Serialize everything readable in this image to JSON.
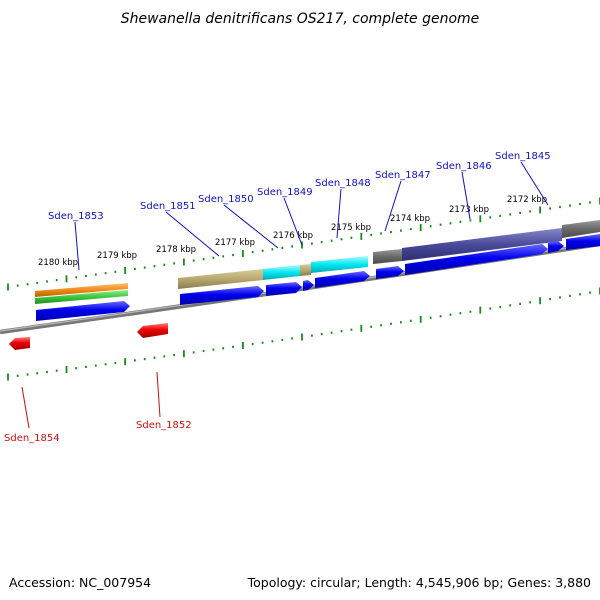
{
  "title": "Shewanella denitrificans OS217, complete genome",
  "footer": {
    "accession": "Accession: NC_007954",
    "topology": "Topology: circular; Length: 4,545,906 bp; Genes: 3,880"
  },
  "kbp_labels": [
    {
      "text": "2180 kbp",
      "pos": 2180
    },
    {
      "text": "2179 kbp",
      "pos": 2179
    },
    {
      "text": "2178 kbp",
      "pos": 2178
    },
    {
      "text": "2177 kbp",
      "pos": 2177
    },
    {
      "text": "2176 kbp",
      "pos": 2176
    },
    {
      "text": "2175 kbp",
      "pos": 2175
    },
    {
      "text": "2174 kbp",
      "pos": 2174
    },
    {
      "text": "2173 kbp",
      "pos": 2173
    },
    {
      "text": "2172 kbp",
      "pos": 2172
    }
  ],
  "genes_forward": [
    {
      "name": "Sden_1853"
    },
    {
      "name": "Sden_1851"
    },
    {
      "name": "Sden_1850"
    },
    {
      "name": "Sden_1849"
    },
    {
      "name": "Sden_1848"
    },
    {
      "name": "Sden_1847"
    },
    {
      "name": "Sden_1846"
    },
    {
      "name": "Sden_1845"
    }
  ],
  "genes_reverse": [
    {
      "name": "Sden_1854"
    },
    {
      "name": "Sden_1852"
    }
  ],
  "colors": {
    "forward_gene": "#0000ee",
    "reverse_gene": "#ee0000",
    "backbone": "#777777",
    "tick": "#1a8a1a",
    "tan": "#b8a870",
    "cyan": "#00e8f0",
    "navy": "#4a4a9a",
    "gray": "#6a6a6a",
    "orange": "#f08c1a",
    "green": "#3cc83c"
  }
}
